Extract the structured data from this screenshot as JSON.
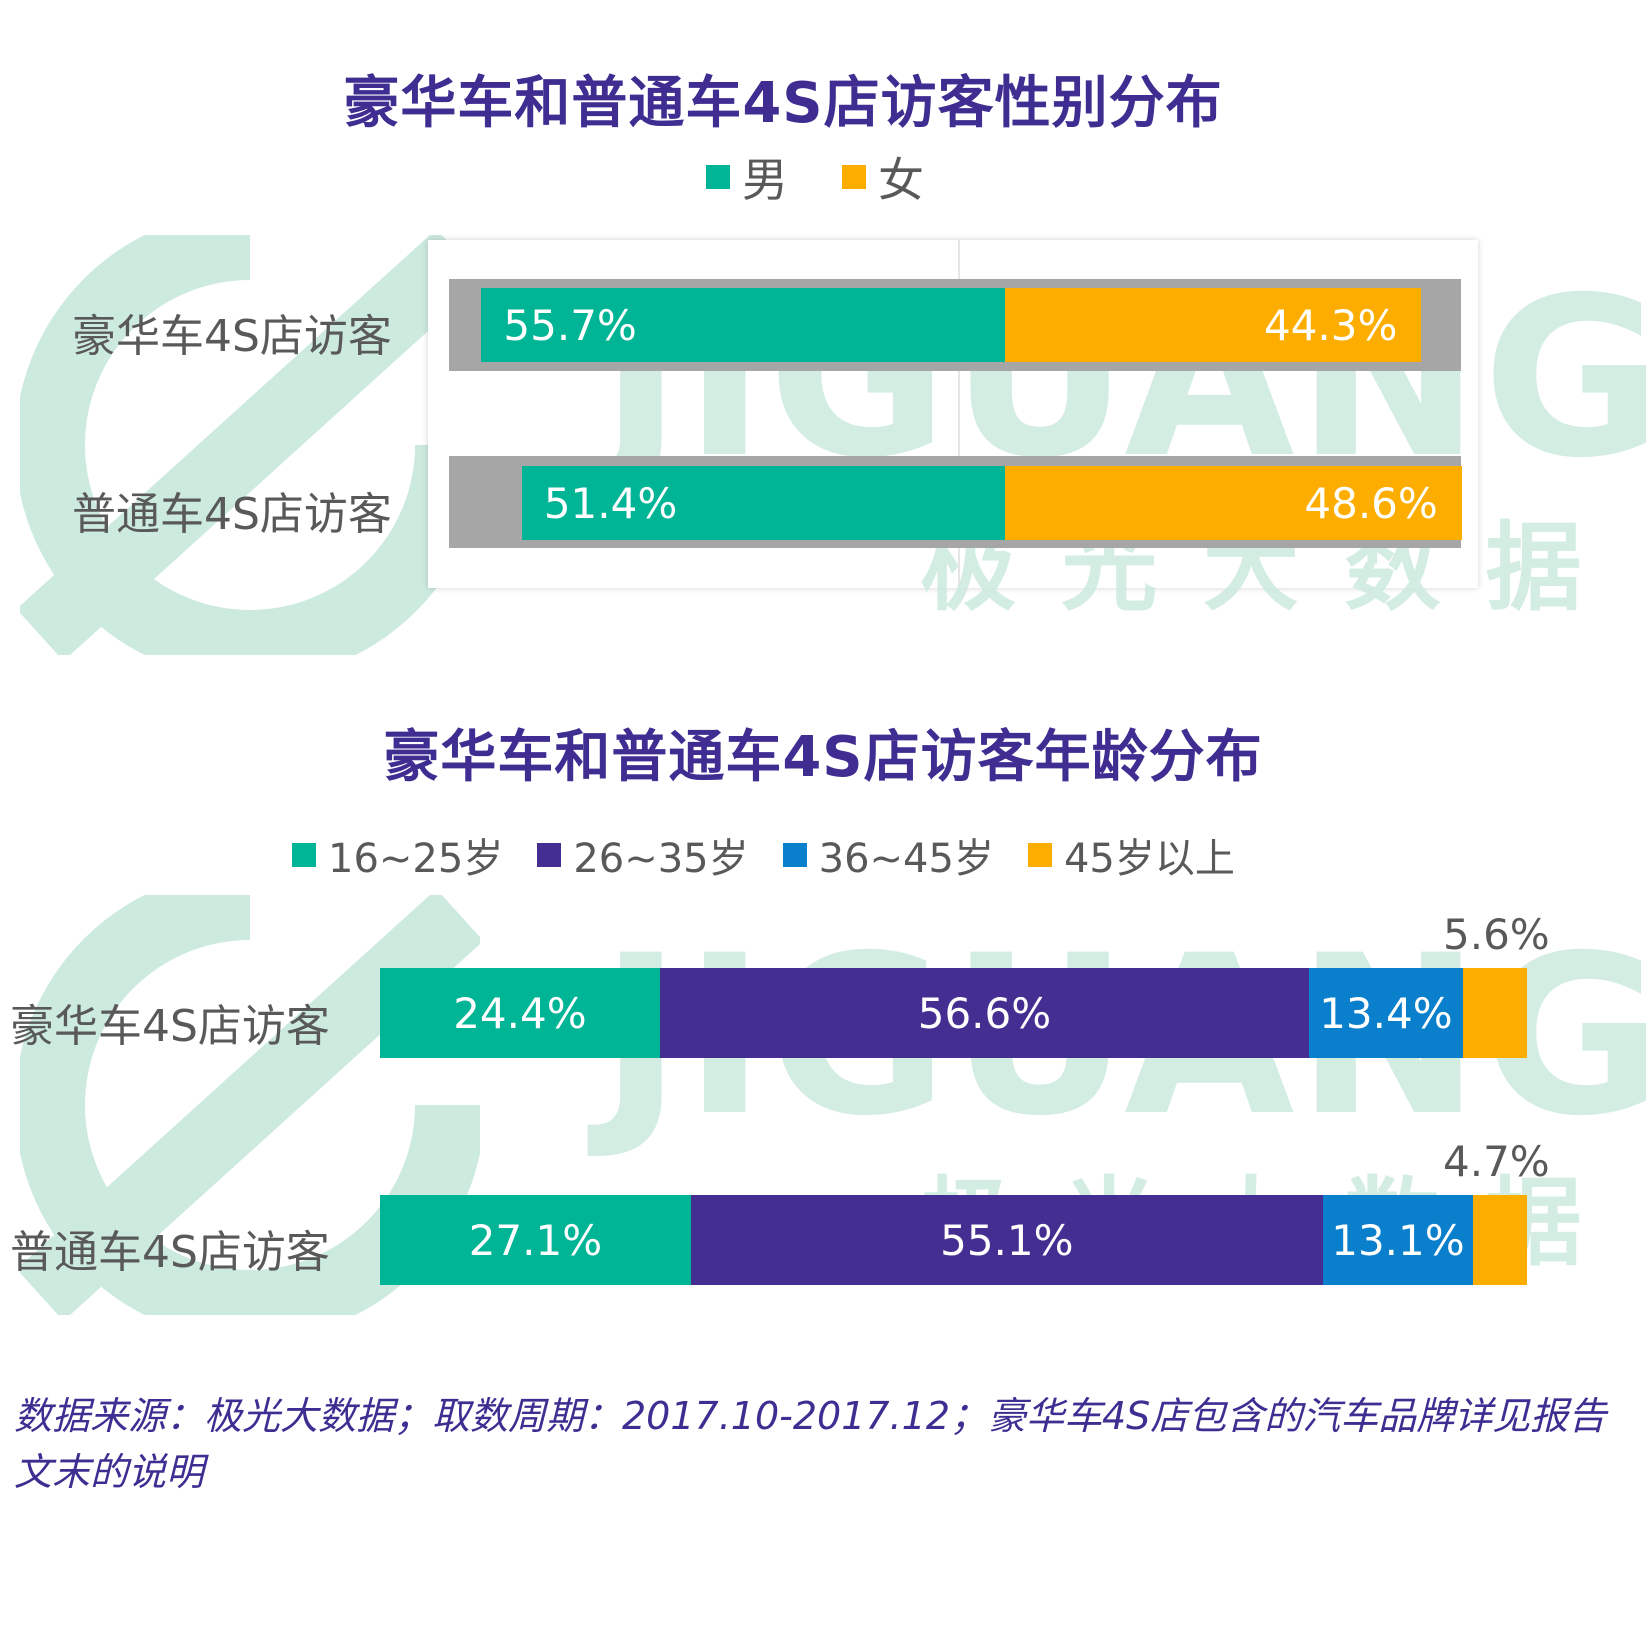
{
  "colors": {
    "title": "#3f2d92",
    "male": "#00b496",
    "female": "#fcad00",
    "age_16_25": "#00b496",
    "age_26_35": "#452e91",
    "age_36_45": "#0a7fcc",
    "age_45_plus": "#fcad00",
    "track": "#a6a6a6",
    "watermark": "#cdeadf"
  },
  "watermark": {
    "brand": "JIGUANG",
    "cn": "极 光 大 数 据"
  },
  "chart_data": [
    {
      "type": "bar",
      "orientation": "horizontal",
      "stacked": "percent",
      "title": "豪华车和普通车4S店访客性别分布",
      "categories": [
        "豪华车4S店访客",
        "普通车4S店访客"
      ],
      "series": [
        {
          "name": "男",
          "values": [
            55.7,
            51.4
          ],
          "labels": [
            "55.7%",
            "51.4%"
          ]
        },
        {
          "name": "女",
          "values": [
            44.3,
            48.6
          ],
          "labels": [
            "44.3%",
            "48.6%"
          ]
        }
      ],
      "legend": "top",
      "xlim": [
        0,
        100
      ]
    },
    {
      "type": "bar",
      "orientation": "horizontal",
      "stacked": "percent",
      "title": "豪华车和普通车4S店访客年龄分布",
      "categories": [
        "豪华车4S店访客",
        "普通车4S店访客"
      ],
      "series": [
        {
          "name": "16~25岁",
          "values": [
            24.4,
            27.1
          ],
          "labels": [
            "24.4%",
            "27.1%"
          ]
        },
        {
          "name": "26~35岁",
          "values": [
            56.6,
            55.1
          ],
          "labels": [
            "56.6%",
            "55.1%"
          ]
        },
        {
          "name": "36~45岁",
          "values": [
            13.4,
            13.1
          ],
          "labels": [
            "13.4%",
            "13.1%"
          ]
        },
        {
          "name": "45岁以上",
          "values": [
            5.6,
            4.7
          ],
          "labels": [
            "5.6%",
            "4.7%"
          ]
        }
      ],
      "legend": "top",
      "xlim": [
        0,
        100
      ]
    }
  ],
  "footnote": "数据来源：极光大数据；取数周期：2017.10-2017.12；豪华车4S店包含的汽车品牌详见报告文末的说明"
}
